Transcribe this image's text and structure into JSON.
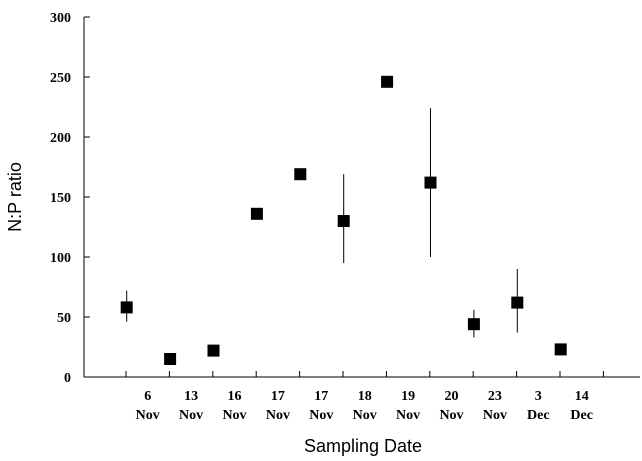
{
  "chart_data": {
    "type": "scatter",
    "title": "",
    "xlabel": "Sampling Date",
    "ylabel": "N:P ratio",
    "ylim": [
      0,
      300
    ],
    "yticks": [
      "0",
      "50",
      "100",
      "150",
      "200",
      "250",
      "300"
    ],
    "grid": false,
    "categories": [
      {
        "day": "6",
        "month": "Nov"
      },
      {
        "day": "13",
        "month": "Nov"
      },
      {
        "day": "16",
        "month": "Nov"
      },
      {
        "day": "17",
        "month": "Nov"
      },
      {
        "day": "17",
        "month": "Nov"
      },
      {
        "day": "18",
        "month": "Nov"
      },
      {
        "day": "19",
        "month": "Nov"
      },
      {
        "day": "20",
        "month": "Nov"
      },
      {
        "day": "23",
        "month": "Nov"
      },
      {
        "day": "3",
        "month": "Dec"
      },
      {
        "day": "14",
        "month": "Dec"
      }
    ],
    "series": [
      {
        "values": [
          58,
          15,
          22,
          136,
          169,
          130,
          246,
          162,
          44,
          62,
          23
        ],
        "error_low": [
          46,
          15,
          19,
          136,
          169,
          95,
          246,
          100,
          33,
          37,
          20
        ],
        "error_high": [
          72,
          15,
          26,
          136,
          169,
          169,
          246,
          224,
          56,
          90,
          27
        ],
        "marker": "square",
        "color": "#000000"
      }
    ]
  }
}
